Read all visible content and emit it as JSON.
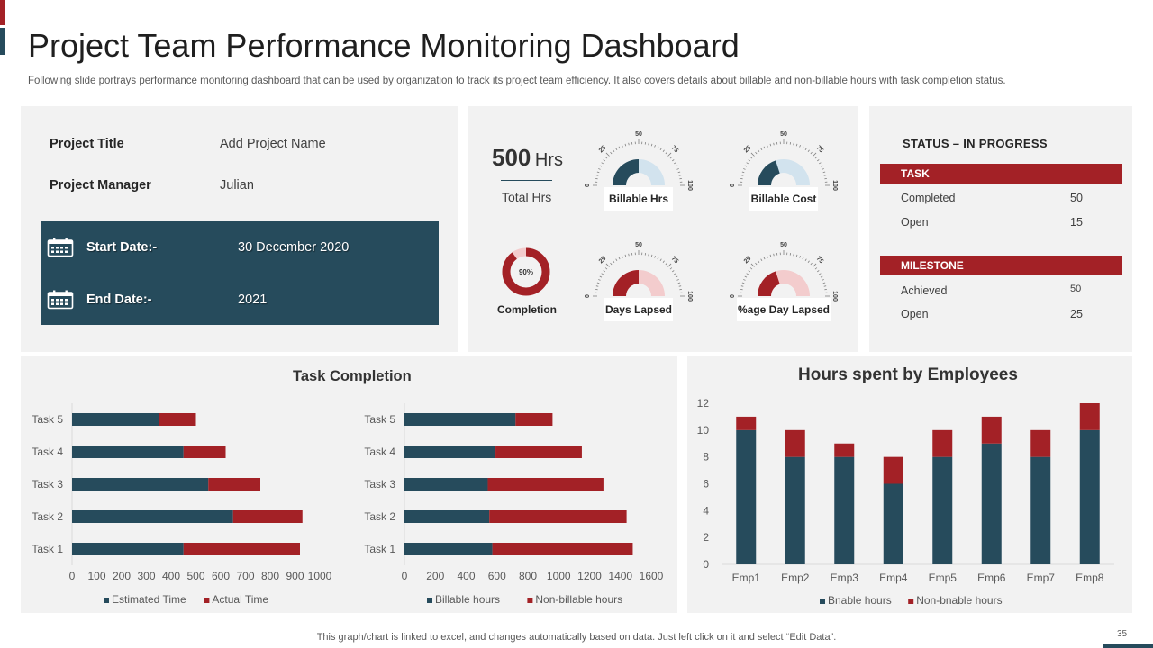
{
  "header": {
    "title": "Project Team Performance Monitoring Dashboard",
    "subtitle": "Following slide portrays performance monitoring dashboard that can be used by organization to track its project team efficiency. It also covers details about billable and non-billable hours with task completion status."
  },
  "colors": {
    "teal": "#264b5c",
    "red": "#a32126",
    "panel": "#f2f2f2",
    "lightBlue": "#d2e3ee",
    "lightRed": "#f3cccd"
  },
  "project_info": {
    "title_label": "Project Title",
    "title_value": "Add Project Name",
    "manager_label": "Project Manager",
    "manager_value": "Julian",
    "start_label": "Start Date:-",
    "start_value": "30 December 2020",
    "end_label": "End Date:-",
    "end_value": "2021",
    "calendar_icon": "calendar-icon"
  },
  "kpis": {
    "total_hours_value": "500",
    "total_hours_unit": "Hrs",
    "total_hours_label": "Total Hrs",
    "completion_percent": 90,
    "completion_text": "90%",
    "completion_label": "Completion",
    "gauge_ticks": [
      "0",
      "25",
      "50",
      "75",
      "100"
    ],
    "gauges": [
      {
        "label": "Billable Hrs",
        "value": 50,
        "color": "#264b5c",
        "track": "#d2e3ee"
      },
      {
        "label": "Billable Cost",
        "value": 40,
        "color": "#264b5c",
        "track": "#d2e3ee"
      },
      {
        "label": "Days Lapsed",
        "value": 50,
        "color": "#a32126",
        "track": "#f3cccd"
      },
      {
        "label": "%age Day Lapsed",
        "value": 40,
        "color": "#a32126",
        "track": "#f3cccd"
      }
    ]
  },
  "status": {
    "heading": "STATUS – IN PROGRESS",
    "task_header": "TASK",
    "task_rows": [
      {
        "label": "Completed",
        "value": "50"
      },
      {
        "label": "Open",
        "value": "15"
      }
    ],
    "milestone_header": "MILESTONE",
    "milestone_rows": [
      {
        "label": "Achieved",
        "value": "50"
      },
      {
        "label": "Open",
        "value": "25"
      }
    ]
  },
  "task_completion": {
    "title": "Task Completion"
  },
  "hours_chart": {
    "title": "Hours spent by Employees"
  },
  "chart_data": [
    {
      "type": "bar",
      "orientation": "horizontal",
      "stacked": true,
      "title": "Task Completion",
      "categories": [
        "Task 5",
        "Task 4",
        "Task 3",
        "Task 2",
        "Task 1"
      ],
      "series": [
        {
          "name": "Estimated Time",
          "color": "#264b5c",
          "values": [
            350,
            450,
            550,
            650,
            450
          ]
        },
        {
          "name": "Actual Time",
          "color": "#a32126",
          "values": [
            150,
            170,
            210,
            280,
            470
          ]
        }
      ],
      "xlim": [
        0,
        1000
      ],
      "xticks": [
        "0",
        "100",
        "200",
        "300",
        "400",
        "500",
        "600",
        "700",
        "800",
        "900",
        "1000"
      ],
      "legend": "bottom"
    },
    {
      "type": "bar",
      "orientation": "horizontal",
      "stacked": true,
      "categories": [
        "Task 5",
        "Task 4",
        "Task 3",
        "Task 2",
        "Task 1"
      ],
      "series": [
        {
          "name": "Billable hours",
          "color": "#264b5c",
          "values": [
            720,
            590,
            540,
            550,
            570
          ]
        },
        {
          "name": "Non-billable hours",
          "color": "#a32126",
          "values": [
            240,
            560,
            750,
            890,
            910
          ]
        }
      ],
      "xlim": [
        0,
        1600
      ],
      "xticks": [
        "0",
        "200",
        "400",
        "600",
        "800",
        "1000",
        "1200",
        "1400",
        "1600"
      ],
      "legend": "bottom"
    },
    {
      "type": "bar",
      "orientation": "vertical",
      "stacked": true,
      "title": "Hours spent by Employees",
      "categories": [
        "Emp1",
        "Emp2",
        "Emp3",
        "Emp4",
        "Emp5",
        "Emp6",
        "Emp7",
        "Emp8"
      ],
      "series": [
        {
          "name": "Bnable hours",
          "color": "#264b5c",
          "values": [
            10,
            8,
            8,
            6,
            8,
            9,
            8,
            10
          ]
        },
        {
          "name": "Non-bnable hours",
          "color": "#a32126",
          "values": [
            1,
            2,
            1,
            2,
            2,
            2,
            2,
            2
          ]
        }
      ],
      "ylim": [
        0,
        12
      ],
      "yticks": [
        "0",
        "2",
        "4",
        "6",
        "8",
        "10",
        "12"
      ],
      "legend": "bottom"
    }
  ],
  "footer": {
    "note": "This graph/chart is linked to excel, and changes automatically based on data. Just left click on it and select “Edit Data”.",
    "page_number": "35"
  }
}
